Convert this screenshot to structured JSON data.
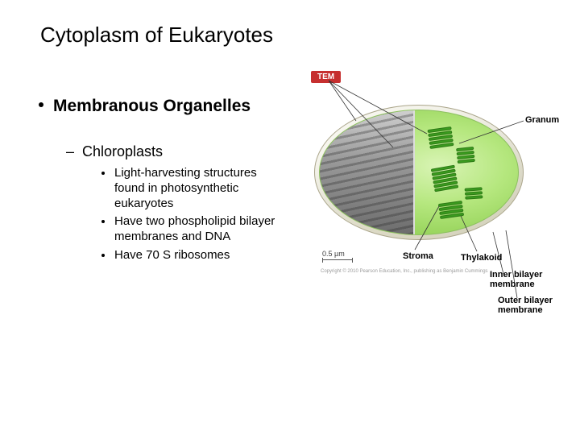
{
  "title": "Cytoplasm of Eukaryotes",
  "heading": "Membranous Organelles",
  "subheading": "Chloroplasts",
  "points": {
    "p1": "Light-harvesting structures found in photosynthetic eukaryotes",
    "p2": "Have two phospholipid bilayer membranes and DNA",
    "p3": "Have 70 S ribosomes"
  },
  "diagram": {
    "badge": "TEM",
    "scalebar": "0.5 µm",
    "labels": {
      "granum": "Granum",
      "stroma": "Stroma",
      "thylakoid": "Thylakoid",
      "inner": "Inner bilayer\nmembrane",
      "outer": "Outer bilayer\nmembrane"
    },
    "colors": {
      "badge_bg": "#c62f2f",
      "chloro_green_light": "#d9f4b5",
      "chloro_green_mid": "#b5e77e",
      "chloro_green_dark": "#7fc43f",
      "stack_fill": "#3a9b1e",
      "stack_border": "#2d7a16",
      "shell_outer": "#e9e6ce",
      "tem_gray": "#9a9a9a"
    },
    "copyright": "Copyright © 2010 Pearson Education, Inc., publishing as Benjamin Cummings"
  }
}
